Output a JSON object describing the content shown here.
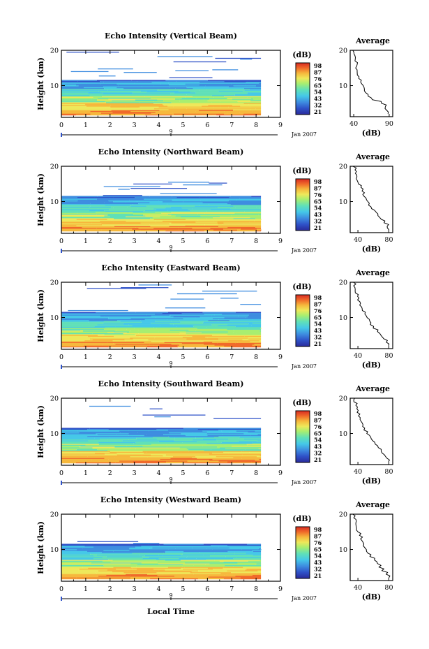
{
  "color_scale": {
    "unit": "(dB)",
    "ticks": [
      "98",
      "87",
      "76",
      "65",
      "54",
      "43",
      "32",
      "21"
    ],
    "colors": [
      "#2a2a9a",
      "#2f52c8",
      "#3e8de0",
      "#45c8e8",
      "#60e0b8",
      "#a8ee70",
      "#eee85a",
      "#f6b83c",
      "#f06a2a",
      "#d82a22"
    ]
  },
  "x_axis": {
    "label": "Local Time",
    "ticks": [
      "0",
      "1",
      "2",
      "3",
      "4",
      "5",
      "6",
      "7",
      "8",
      "9"
    ],
    "date_label": "Jan 2007",
    "day_label": "9"
  },
  "chart_data": [
    {
      "type": "heatmap",
      "title": "Echo Intensity (Vertical Beam)",
      "ylabel": "Height (km)",
      "xlabel": "Local Time",
      "xlim": [
        0,
        9
      ],
      "ylim": [
        1,
        20
      ],
      "yticks": [
        10,
        20
      ],
      "data_end_time": 8.2,
      "max_echo_height_km": 19.5,
      "average_profile": {
        "title": "Average",
        "xlabel": "(dB)",
        "xticks": [
          40,
          90
        ],
        "xlim": [
          35,
          95
        ],
        "height_km": [
          2,
          3,
          4,
          5,
          6,
          7,
          8,
          9,
          10,
          11,
          12,
          13,
          14,
          15,
          16,
          17,
          18,
          19,
          20
        ],
        "value_db": [
          88,
          86,
          84,
          78,
          66,
          60,
          57,
          54,
          52,
          49,
          47,
          46,
          45,
          44,
          44,
          43,
          42,
          41,
          40
        ]
      }
    },
    {
      "type": "heatmap",
      "title": "Echo Intensity (Northward Beam)",
      "ylabel": "Height (km)",
      "xlabel": "Local Time",
      "xlim": [
        0,
        9
      ],
      "ylim": [
        1,
        20
      ],
      "yticks": [
        10,
        20
      ],
      "data_end_time": 8.2,
      "max_echo_height_km": 15.5,
      "average_profile": {
        "title": "Average",
        "xlabel": "(dB)",
        "xticks": [
          40,
          80
        ],
        "xlim": [
          30,
          85
        ],
        "height_km": [
          2,
          3,
          4,
          5,
          6,
          7,
          8,
          9,
          10,
          11,
          12,
          13,
          14,
          15,
          16,
          17,
          18,
          19,
          20
        ],
        "value_db": [
          80,
          78,
          74,
          70,
          66,
          62,
          58,
          55,
          52,
          49,
          47,
          45,
          43,
          41,
          39,
          38,
          37,
          36,
          35
        ]
      }
    },
    {
      "type": "heatmap",
      "title": "Echo Intensity (Eastward Beam)",
      "ylabel": "Height (km)",
      "xlabel": "Local Time",
      "xlim": [
        0,
        9
      ],
      "ylim": [
        1,
        20
      ],
      "yticks": [
        10,
        20
      ],
      "data_end_time": 8.2,
      "max_echo_height_km": 19.5,
      "average_profile": {
        "title": "Average",
        "xlabel": "(dB)",
        "xticks": [
          40,
          80
        ],
        "xlim": [
          30,
          85
        ],
        "height_km": [
          2,
          3,
          4,
          5,
          6,
          7,
          8,
          9,
          10,
          11,
          12,
          13,
          14,
          15,
          16,
          17,
          18,
          19,
          20
        ],
        "value_db": [
          80,
          78,
          73,
          69,
          65,
          61,
          57,
          54,
          51,
          48,
          46,
          44,
          42,
          40,
          39,
          38,
          37,
          36,
          35
        ]
      }
    },
    {
      "type": "heatmap",
      "title": "Echo Intensity (Southward Beam)",
      "ylabel": "Height (km)",
      "xlabel": "Local Time",
      "xlim": [
        0,
        9
      ],
      "ylim": [
        1,
        20
      ],
      "yticks": [
        10,
        20
      ],
      "data_end_time": 8.2,
      "max_echo_height_km": 18,
      "average_profile": {
        "title": "Average",
        "xlabel": "(dB)",
        "xticks": [
          40,
          80
        ],
        "xlim": [
          30,
          85
        ],
        "height_km": [
          2,
          3,
          4,
          5,
          6,
          7,
          8,
          9,
          10,
          11,
          12,
          13,
          14,
          15,
          16,
          17,
          18,
          19,
          20
        ],
        "value_db": [
          80,
          77,
          73,
          69,
          65,
          61,
          58,
          55,
          52,
          49,
          47,
          45,
          43,
          41,
          39,
          38,
          37,
          36,
          35
        ]
      }
    },
    {
      "type": "heatmap",
      "title": "Echo Intensity (Westward Beam)",
      "ylabel": "Height (km)",
      "xlabel": "Local Time",
      "xlim": [
        0,
        9
      ],
      "ylim": [
        1,
        20
      ],
      "yticks": [
        10,
        20
      ],
      "data_end_time": 8.2,
      "max_echo_height_km": 12.5,
      "average_profile": {
        "title": "Average",
        "xlabel": "(dB)",
        "xticks": [
          40,
          80
        ],
        "xlim": [
          30,
          85
        ],
        "height_km": [
          2,
          3,
          4,
          5,
          6,
          7,
          8,
          9,
          10,
          11,
          12,
          13,
          14,
          15,
          16,
          17,
          18,
          19,
          20
        ],
        "value_db": [
          80,
          77,
          72,
          68,
          64,
          60,
          56,
          53,
          50,
          48,
          46,
          44,
          42,
          40,
          39,
          38,
          37,
          36,
          35
        ]
      }
    }
  ]
}
